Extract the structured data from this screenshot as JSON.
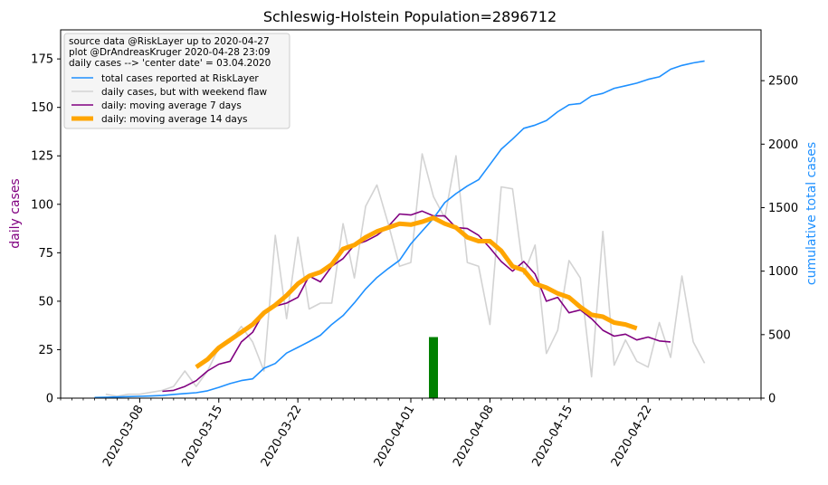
{
  "chart_data": {
    "type": "line",
    "title": "Schleswig-Holstein Population=2896712",
    "ylabel_left": "daily cases",
    "ylabel_right": "cumulative total cases",
    "ylim_left": [
      0,
      190
    ],
    "ylim_right": [
      0,
      2900
    ],
    "xlim": [
      "2020-03-01",
      "2020-05-02"
    ],
    "left_ticks": [
      0,
      25,
      50,
      75,
      100,
      125,
      150,
      175
    ],
    "right_ticks": [
      0,
      500,
      1000,
      1500,
      2000,
      2500
    ],
    "x_ticks": [
      "2020-03-08",
      "2020-03-15",
      "2020-03-22",
      "2020-04-01",
      "2020-04-08",
      "2020-04-15",
      "2020-04-22"
    ],
    "legend_position": "upper left",
    "annotation_lines": [
      "source data @RiskLayer up to 2020-04-27",
      "plot @DrAndreasKruger 2020-04-28 23:09",
      "daily cases --> 'center date' = 03.04.2020"
    ],
    "center_date_bar": {
      "date": "2020-04-03",
      "value": 31.5
    },
    "colors": {
      "total": "#1e90ff",
      "daily": "#d3d3d3",
      "ma7": "#800080",
      "ma14": "#ffa500",
      "bar": "#008000",
      "ylabel_left": "#800080",
      "ylabel_right": "#1e90ff"
    },
    "series": [
      {
        "name": "total cases reported at RiskLayer",
        "axis": "right",
        "x": [
          "2020-03-04",
          "2020-03-05",
          "2020-03-06",
          "2020-03-07",
          "2020-03-08",
          "2020-03-09",
          "2020-03-10",
          "2020-03-11",
          "2020-03-12",
          "2020-03-13",
          "2020-03-14",
          "2020-03-15",
          "2020-03-16",
          "2020-03-17",
          "2020-03-18",
          "2020-03-19",
          "2020-03-20",
          "2020-03-21",
          "2020-03-22",
          "2020-03-23",
          "2020-03-24",
          "2020-03-25",
          "2020-03-26",
          "2020-03-27",
          "2020-03-28",
          "2020-03-29",
          "2020-03-30",
          "2020-03-31",
          "2020-04-01",
          "2020-04-02",
          "2020-04-03",
          "2020-04-04",
          "2020-04-05",
          "2020-04-06",
          "2020-04-07",
          "2020-04-08",
          "2020-04-09",
          "2020-04-10",
          "2020-04-11",
          "2020-04-12",
          "2020-04-13",
          "2020-04-14",
          "2020-04-15",
          "2020-04-16",
          "2020-04-17",
          "2020-04-18",
          "2020-04-19",
          "2020-04-20",
          "2020-04-21",
          "2020-04-22",
          "2020-04-23",
          "2020-04-24",
          "2020-04-25",
          "2020-04-26",
          "2020-04-27"
        ],
        "values": [
          5,
          7,
          9,
          12,
          14,
          17,
          21,
          29,
          36,
          43,
          58,
          85,
          115,
          138,
          152,
          235,
          273,
          355,
          400,
          445,
          495,
          580,
          650,
          750,
          860,
          950,
          1020,
          1085,
          1215,
          1315,
          1415,
          1540,
          1610,
          1670,
          1720,
          1840,
          1960,
          2040,
          2125,
          2150,
          2185,
          2255,
          2310,
          2320,
          2380,
          2400,
          2440,
          2460,
          2480,
          2510,
          2530,
          2590,
          2620,
          2640,
          2655
        ]
      },
      {
        "name": "daily cases, but with weekend flaw",
        "axis": "left",
        "x": [
          "2020-03-05",
          "2020-03-06",
          "2020-03-07",
          "2020-03-08",
          "2020-03-09",
          "2020-03-10",
          "2020-03-11",
          "2020-03-12",
          "2020-03-13",
          "2020-03-14",
          "2020-03-15",
          "2020-03-16",
          "2020-03-17",
          "2020-03-18",
          "2020-03-19",
          "2020-03-20",
          "2020-03-21",
          "2020-03-22",
          "2020-03-23",
          "2020-03-24",
          "2020-03-25",
          "2020-03-26",
          "2020-03-27",
          "2020-03-28",
          "2020-03-29",
          "2020-03-30",
          "2020-03-31",
          "2020-04-01",
          "2020-04-02",
          "2020-04-03",
          "2020-04-04",
          "2020-04-05",
          "2020-04-06",
          "2020-04-07",
          "2020-04-08",
          "2020-04-09",
          "2020-04-10",
          "2020-04-11",
          "2020-04-12",
          "2020-04-13",
          "2020-04-14",
          "2020-04-15",
          "2020-04-16",
          "2020-04-17",
          "2020-04-18",
          "2020-04-19",
          "2020-04-20",
          "2020-04-21",
          "2020-04-22",
          "2020-04-23",
          "2020-04-24",
          "2020-04-25",
          "2020-04-26",
          "2020-04-27"
        ],
        "values": [
          2,
          1,
          2,
          2,
          3,
          4,
          6,
          14,
          6,
          14,
          26,
          29,
          37,
          29,
          14,
          84,
          41,
          83,
          46,
          49,
          49,
          90,
          62,
          99,
          110,
          90,
          68,
          70,
          126,
          104,
          93,
          125,
          70,
          68,
          38,
          109,
          108,
          64,
          79,
          23,
          35,
          71,
          62,
          11,
          86,
          17,
          30,
          19,
          16,
          39,
          21,
          63,
          29,
          18
        ]
      },
      {
        "name": "daily: moving average 7 days",
        "axis": "left",
        "x": [
          "2020-03-10",
          "2020-03-11",
          "2020-03-12",
          "2020-03-13",
          "2020-03-14",
          "2020-03-15",
          "2020-03-16",
          "2020-03-17",
          "2020-03-18",
          "2020-03-19",
          "2020-03-20",
          "2020-03-21",
          "2020-03-22",
          "2020-03-23",
          "2020-03-24",
          "2020-03-25",
          "2020-03-26",
          "2020-03-27",
          "2020-03-28",
          "2020-03-29",
          "2020-03-30",
          "2020-03-31",
          "2020-04-01",
          "2020-04-02",
          "2020-04-03",
          "2020-04-04",
          "2020-04-05",
          "2020-04-06",
          "2020-04-07",
          "2020-04-08",
          "2020-04-09",
          "2020-04-10",
          "2020-04-11",
          "2020-04-12",
          "2020-04-13",
          "2020-04-14",
          "2020-04-15",
          "2020-04-16",
          "2020-04-17",
          "2020-04-18",
          "2020-04-19",
          "2020-04-20",
          "2020-04-21",
          "2020-04-22",
          "2020-04-23",
          "2020-04-24"
        ],
        "values": [
          3.5,
          4,
          6,
          9,
          14,
          17.5,
          19,
          29,
          34,
          44.5,
          47.5,
          49,
          52,
          63,
          60,
          68,
          72,
          79,
          81,
          84,
          88.5,
          95,
          94.5,
          96.5,
          94,
          94,
          88,
          87.5,
          84,
          77.5,
          70.5,
          65.5,
          70.5,
          64,
          50,
          52,
          44,
          45.5,
          41,
          35,
          32,
          33,
          30,
          31.5,
          29.5,
          29
        ]
      },
      {
        "name": "daily: moving average 14 days",
        "axis": "left",
        "x": [
          "2020-03-13",
          "2020-03-14",
          "2020-03-15",
          "2020-03-16",
          "2020-03-17",
          "2020-03-18",
          "2020-03-19",
          "2020-03-20",
          "2020-03-21",
          "2020-03-22",
          "2020-03-23",
          "2020-03-24",
          "2020-03-25",
          "2020-03-26",
          "2020-03-27",
          "2020-03-28",
          "2020-03-29",
          "2020-03-30",
          "2020-03-31",
          "2020-04-01",
          "2020-04-02",
          "2020-04-03",
          "2020-04-04",
          "2020-04-05",
          "2020-04-06",
          "2020-04-07",
          "2020-04-08",
          "2020-04-09",
          "2020-04-10",
          "2020-04-11",
          "2020-04-12",
          "2020-04-13",
          "2020-04-14",
          "2020-04-15",
          "2020-04-16",
          "2020-04-17",
          "2020-04-18",
          "2020-04-19",
          "2020-04-20",
          "2020-04-21"
        ],
        "values": [
          16,
          20,
          26,
          30,
          34,
          38,
          44,
          48,
          53,
          59,
          63,
          65,
          69,
          77,
          79,
          83,
          86,
          88,
          90,
          89.5,
          91,
          93,
          90,
          88,
          83,
          81,
          81,
          76,
          68,
          66,
          59,
          57,
          54,
          52,
          47,
          43,
          42,
          39,
          38,
          36
        ]
      }
    ]
  }
}
